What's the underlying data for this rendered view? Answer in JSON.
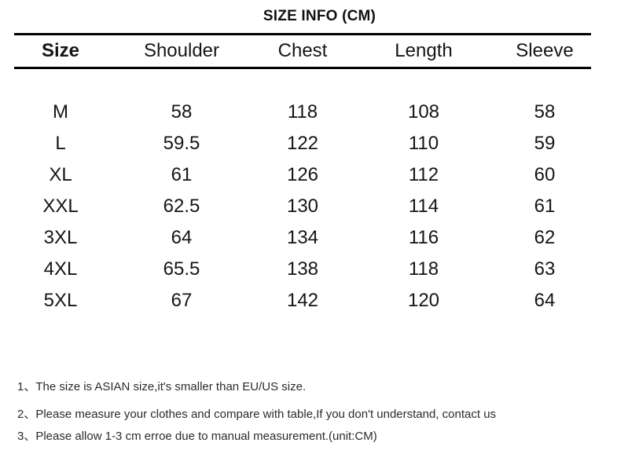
{
  "title": "SIZE INFO (CM)",
  "colors": {
    "background": "#ffffff",
    "table_text": "#151515",
    "rule": "#000000",
    "notes_text": "#2b2b2b"
  },
  "table": {
    "columns": [
      "Size",
      "Shoulder",
      "Chest",
      "Length",
      "Sleeve"
    ],
    "rows": [
      {
        "size": "M",
        "shoulder": "58",
        "chest": "118",
        "length": "108",
        "sleeve": "58"
      },
      {
        "size": "L",
        "shoulder": "59.5",
        "chest": "122",
        "length": "110",
        "sleeve": "59"
      },
      {
        "size": "XL",
        "shoulder": "61",
        "chest": "126",
        "length": "112",
        "sleeve": "60"
      },
      {
        "size": "XXL",
        "shoulder": "62.5",
        "chest": "130",
        "length": "114",
        "sleeve": "61"
      },
      {
        "size": "3XL",
        "shoulder": "64",
        "chest": "134",
        "length": "116",
        "sleeve": "62"
      },
      {
        "size": "4XL",
        "shoulder": "65.5",
        "chest": "138",
        "length": "118",
        "sleeve": "63"
      },
      {
        "size": "5XL",
        "shoulder": "67",
        "chest": "142",
        "length": "120",
        "sleeve": "64"
      }
    ]
  },
  "notes": [
    "1、The size is ASIAN size,it's smaller than EU/US size.",
    "2、Please measure your clothes and compare with table,If you don't understand, contact us",
    "3、Please allow 1-3 cm erroe due to manual measurement.(unit:CM)"
  ]
}
